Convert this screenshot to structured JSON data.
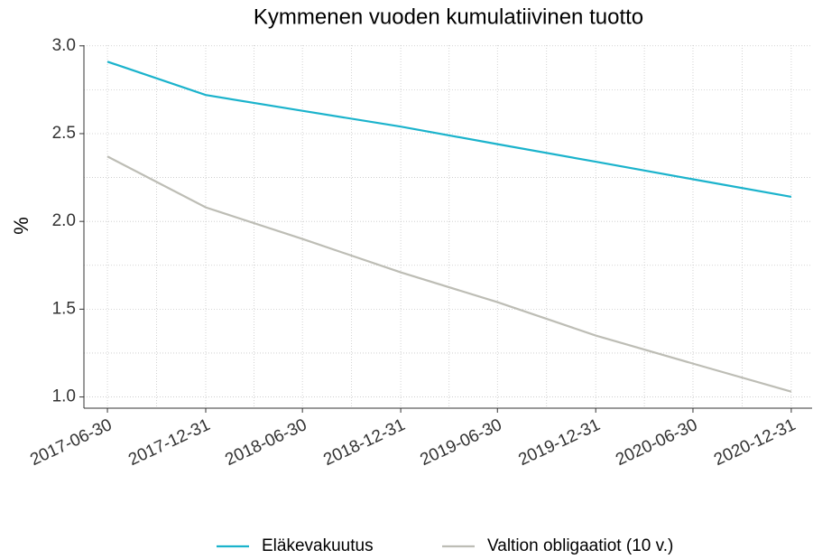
{
  "chart_data": {
    "type": "line",
    "title": "Kymmenen vuoden kumulatiivinen tuotto",
    "ylabel": "%",
    "x": [
      "2017-06-30",
      "2017-12-31",
      "2018-06-30",
      "2018-12-31",
      "2019-06-30",
      "2019-12-31",
      "2020-06-30",
      "2020-12-31"
    ],
    "series": [
      {
        "name": "Eläkevakuutus",
        "color": "#1bb3cc",
        "values": [
          2.91,
          2.72,
          2.63,
          2.54,
          2.44,
          2.34,
          2.24,
          2.14
        ]
      },
      {
        "name": "Valtion obligaatiot (10 v.)",
        "color": "#bdbdb5",
        "values": [
          2.37,
          2.08,
          1.9,
          1.71,
          1.54,
          1.35,
          1.19,
          1.03
        ]
      }
    ],
    "xlim": [
      "2017-05-17",
      "2021-02-08"
    ],
    "xticks": [
      "2017-06-30",
      "2017-12-31",
      "2018-06-30",
      "2018-12-31",
      "2019-06-30",
      "2019-12-31",
      "2020-06-30",
      "2020-12-31"
    ],
    "ylim": [
      0.936,
      3.004
    ],
    "yticks": [
      {
        "value": 1,
        "label": "1.0"
      },
      1.5,
      {
        "value": 2,
        "label": "2.0"
      },
      2.5,
      {
        "value": 3,
        "label": "3.0"
      }
    ],
    "grid": true,
    "legend": "bottom"
  }
}
